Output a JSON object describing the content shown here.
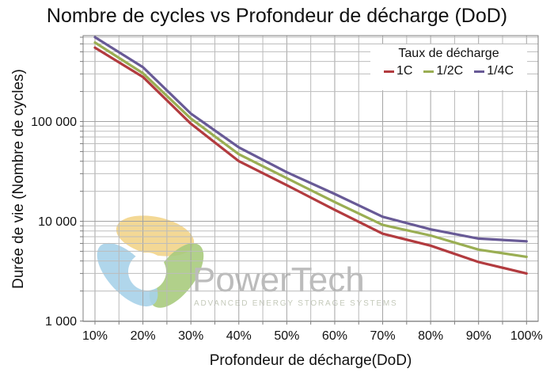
{
  "title": "Nombre de cycles vs Profondeur de décharge (DoD)",
  "x_axis": {
    "label": "Profondeur de décharge(DoD)",
    "tick_labels": [
      "10%",
      "20%",
      "30%",
      "40%",
      "50%",
      "60%",
      "70%",
      "80%",
      "90%",
      "100%"
    ]
  },
  "y_axis": {
    "label": "Durée de vie (Nombre de cycles)",
    "scale": "log",
    "ticks": [
      {
        "label": "1 000",
        "value": 1000
      },
      {
        "label": "10 000",
        "value": 10000
      },
      {
        "label": "100 000",
        "value": 100000
      }
    ]
  },
  "legend": {
    "title": "Taux de décharge"
  },
  "watermark": {
    "name": "PowerTech",
    "tagline": "ADVANCED ENERGY STORAGE SYSTEMS",
    "logo_colors": {
      "yellow": "#f2d489",
      "green": "#a8cb7d",
      "blue": "#a7d2e9"
    },
    "text_color": "#bcbcbc",
    "tagline_color": "#c5cabb"
  },
  "chart_data": {
    "type": "line",
    "title": "Nombre de cycles vs Profondeur de décharge (DoD)",
    "xlabel": "Profondeur de décharge(DoD)",
    "ylabel": "Durée de vie (Nombre de cycles)",
    "x": [
      10,
      20,
      30,
      40,
      50,
      60,
      70,
      80,
      90,
      100
    ],
    "x_unit": "%",
    "xlim": [
      7.5,
      102.5
    ],
    "yscale": "log",
    "ylim": [
      1000,
      730000
    ],
    "grid": true,
    "legend_position": "top-right",
    "legend_title": "Taux de décharge",
    "series": [
      {
        "name": "1C",
        "color": "#b23b3f",
        "values": [
          550000,
          280000,
          95000,
          40000,
          23000,
          13000,
          7500,
          5700,
          3900,
          3000
        ]
      },
      {
        "name": "1/2C",
        "color": "#9aae53",
        "values": [
          620000,
          305000,
          107000,
          47000,
          27000,
          15600,
          9200,
          7200,
          5200,
          4400
        ]
      },
      {
        "name": "1/4C",
        "color": "#685a96",
        "values": [
          700000,
          350000,
          120000,
          55000,
          31000,
          18800,
          11100,
          8300,
          6700,
          6300
        ]
      }
    ]
  }
}
